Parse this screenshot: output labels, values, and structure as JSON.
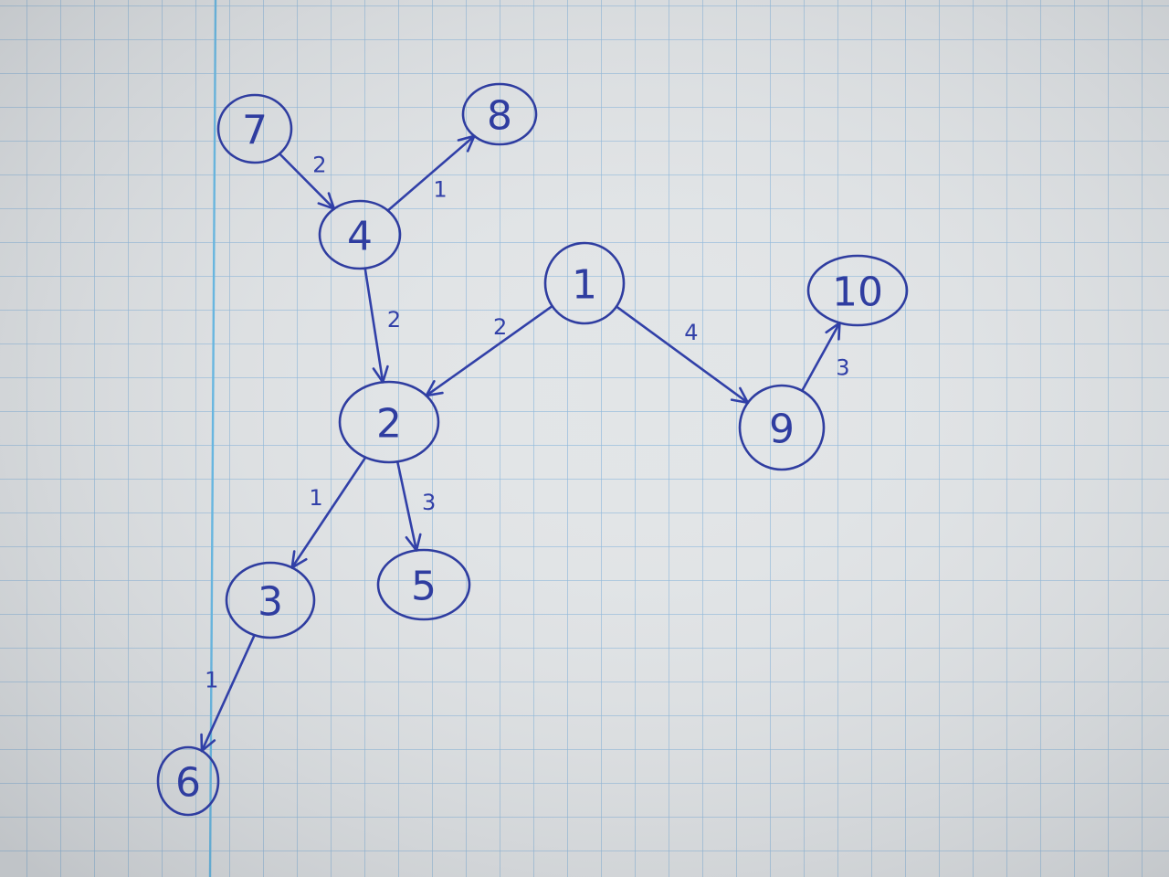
{
  "graph": {
    "nodes": [
      {
        "id": "7",
        "label": "7"
      },
      {
        "id": "8",
        "label": "8"
      },
      {
        "id": "4",
        "label": "4"
      },
      {
        "id": "1",
        "label": "1"
      },
      {
        "id": "10",
        "label": "10"
      },
      {
        "id": "2",
        "label": "2"
      },
      {
        "id": "9",
        "label": "9"
      },
      {
        "id": "3",
        "label": "3"
      },
      {
        "id": "5",
        "label": "5"
      },
      {
        "id": "6",
        "label": "6"
      }
    ],
    "edges": [
      {
        "from": "7",
        "to": "4",
        "weight": "2"
      },
      {
        "from": "4",
        "to": "8",
        "weight": "1"
      },
      {
        "from": "4",
        "to": "2",
        "weight": "2"
      },
      {
        "from": "1",
        "to": "2",
        "weight": "2"
      },
      {
        "from": "1",
        "to": "9",
        "weight": "4"
      },
      {
        "from": "9",
        "to": "10",
        "weight": "3"
      },
      {
        "from": "2",
        "to": "3",
        "weight": "1"
      },
      {
        "from": "2",
        "to": "5",
        "weight": "3"
      },
      {
        "from": "3",
        "to": "6",
        "weight": "1"
      }
    ]
  },
  "colors": {
    "ink": "#3140a8",
    "paper": "#dfe2e4",
    "grid": "#6fa7d6",
    "margin_line": "#5bb6e6"
  }
}
